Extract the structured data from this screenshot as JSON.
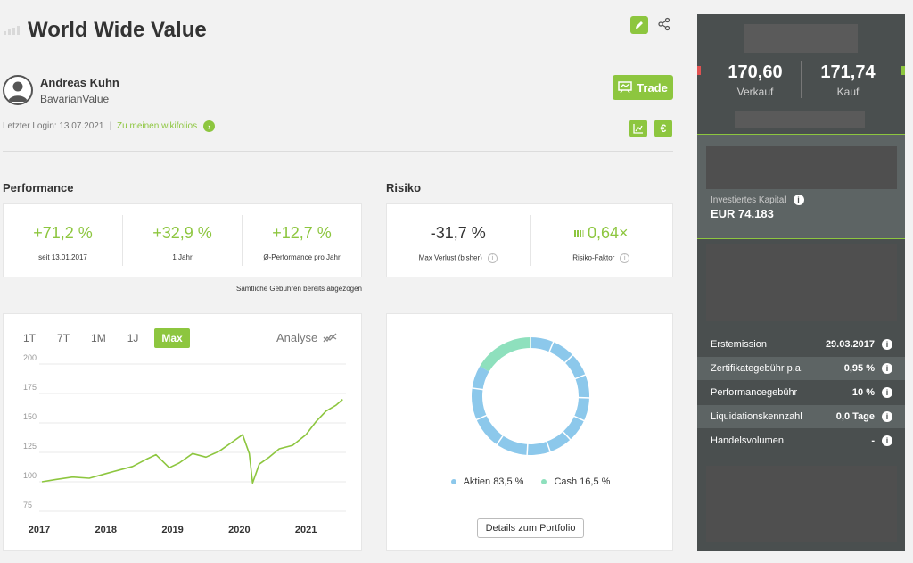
{
  "header": {
    "title": "World Wide Value"
  },
  "trader": {
    "name": "Andreas Kuhn",
    "handle": "BavarianValue",
    "login": "Letzter Login: 13.07.2021",
    "link": "Zu meinen wikifolios"
  },
  "buttons": {
    "trade": "Trade",
    "euro": "€"
  },
  "performance": {
    "heading": "Performance",
    "stats": [
      {
        "value": "+71,2 %",
        "label": "seit 13.01.2017"
      },
      {
        "value": "+32,9 %",
        "label": "1 Jahr"
      },
      {
        "value": "+12,7 %",
        "label": "Ø-Performance pro Jahr"
      }
    ],
    "note": "Sämtliche Gebühren bereits abgezogen"
  },
  "risk": {
    "heading": "Risiko",
    "max_loss": {
      "value": "-31,7 %",
      "label": "Max Verlust (bisher)"
    },
    "factor": {
      "value": "0,64×",
      "label": "Risiko-Faktor"
    }
  },
  "chart_controls": {
    "tabs": [
      "1T",
      "7T",
      "1M",
      "1J",
      "Max"
    ],
    "active_tab": "Max",
    "analyse": "Analyse"
  },
  "chart_data": [
    {
      "type": "line",
      "ylim": [
        75,
        200
      ],
      "yticks": [
        "200",
        "175",
        "150",
        "125",
        "100",
        "75"
      ],
      "xticks": [
        "2017",
        "2018",
        "2019",
        "2020",
        "2021"
      ],
      "color": "#8dc63f",
      "x": [
        2017.04,
        2017.25,
        2017.5,
        2017.75,
        2018.0,
        2018.2,
        2018.4,
        2018.6,
        2018.75,
        2018.95,
        2019.1,
        2019.3,
        2019.5,
        2019.7,
        2019.9,
        2020.05,
        2020.15,
        2020.2,
        2020.3,
        2020.45,
        2020.6,
        2020.8,
        2021.0,
        2021.15,
        2021.3,
        2021.45,
        2021.55
      ],
      "values": [
        100,
        102,
        104,
        103,
        107,
        110,
        113,
        119,
        123,
        112,
        116,
        124,
        121,
        126,
        134,
        140,
        124,
        99,
        115,
        121,
        128,
        131,
        140,
        151,
        160,
        165,
        170
      ]
    },
    {
      "type": "pie",
      "categories": [
        "Aktien",
        "Cash"
      ],
      "values": [
        83.5,
        16.5
      ],
      "colors": [
        "#8cc8eb",
        "#8ee0bd"
      ],
      "legend": [
        "Aktien  83,5 %",
        "Cash  16,5 %"
      ]
    }
  ],
  "portfolio_button": "Details zum Portfolio",
  "quote": {
    "sell_value": "170,60",
    "sell_label": "Verkauf",
    "buy_value": "171,74",
    "buy_label": "Kauf"
  },
  "invested": {
    "label": "Investiertes Kapital",
    "value": "EUR 74.183"
  },
  "details": [
    {
      "label": "Erstemission",
      "value": "29.03.2017"
    },
    {
      "label": "Zertifikategebühr p.a.",
      "value": "0,95 %"
    },
    {
      "label": "Performancegebühr",
      "value": "10 %"
    },
    {
      "label": "Liquidationskennzahl",
      "value": "0,0 Tage"
    },
    {
      "label": "Handelsvolumen",
      "value": "-"
    }
  ]
}
